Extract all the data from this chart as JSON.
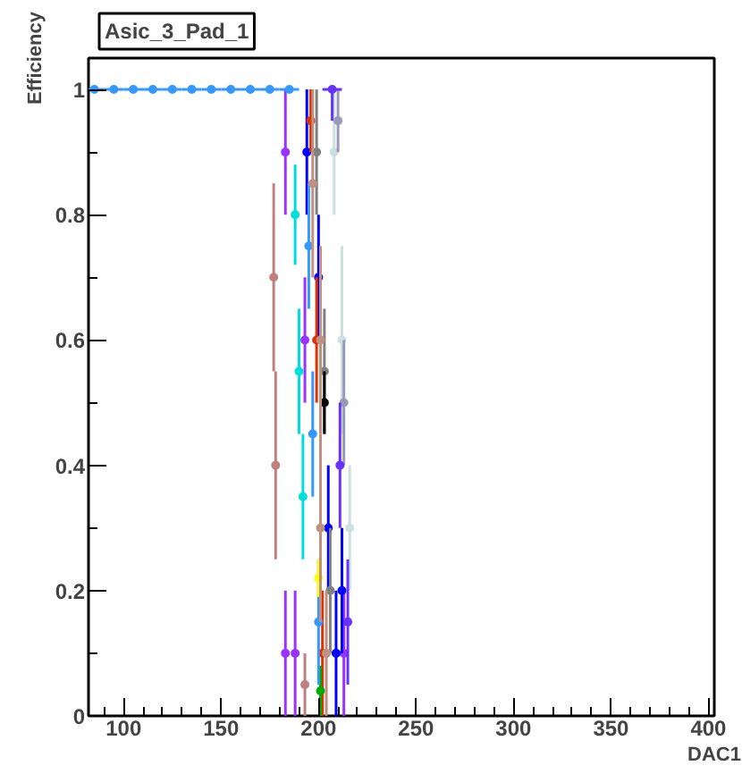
{
  "chart_data": {
    "type": "scatter",
    "title": "Asic_3_Pad_1",
    "xlabel": "DAC1",
    "ylabel": "Efficiency",
    "marker": "circle",
    "grid": false,
    "xlim": [
      82,
      403
    ],
    "ylim": [
      0,
      1.05
    ],
    "xticks": [
      {
        "value": 90,
        "label": null
      },
      100,
      {
        "value": 110,
        "label": null
      },
      {
        "value": 120,
        "label": null
      },
      {
        "value": 130,
        "label": null
      },
      {
        "value": 140,
        "label": null
      },
      150,
      {
        "value": 160,
        "label": null
      },
      {
        "value": 170,
        "label": null
      },
      {
        "value": 180,
        "label": null
      },
      {
        "value": 190,
        "label": null
      },
      200,
      {
        "value": 210,
        "label": null
      },
      {
        "value": 220,
        "label": null
      },
      {
        "value": 230,
        "label": null
      },
      {
        "value": 240,
        "label": null
      },
      250,
      {
        "value": 260,
        "label": null
      },
      {
        "value": 270,
        "label": null
      },
      {
        "value": 280,
        "label": null
      },
      {
        "value": 290,
        "label": null
      },
      300,
      {
        "value": 310,
        "label": null
      },
      {
        "value": 320,
        "label": null
      },
      {
        "value": 330,
        "label": null
      },
      {
        "value": 340,
        "label": null
      },
      350,
      {
        "value": 360,
        "label": null
      },
      {
        "value": 370,
        "label": null
      },
      {
        "value": 380,
        "label": null
      },
      {
        "value": 390,
        "label": null
      },
      400
    ],
    "yticks": [
      0,
      {
        "value": 0.1,
        "label": null
      },
      0.2,
      {
        "value": 0.3,
        "label": null
      },
      0.4,
      {
        "value": 0.5,
        "label": null
      },
      0.6,
      {
        "value": 0.7,
        "label": null
      },
      0.8,
      {
        "value": 0.9,
        "label": null
      },
      1
    ],
    "series": [
      {
        "color": "#9933ff",
        "x": [
          183,
          183,
          188,
          193,
          213
        ],
        "values": [
          0.9,
          0.1,
          0.1,
          0.6,
          0.1
        ],
        "errors": [
          0.1,
          0.1,
          0.1,
          0.1,
          0.1
        ],
        "xerrors": [
          1.5,
          1.5,
          1.5,
          1.5,
          1.5
        ]
      },
      {
        "color": "#c08080",
        "x": [
          177,
          178,
          193
        ],
        "values": [
          0.7,
          0.4,
          0.05
        ],
        "errors": [
          0.15,
          0.15,
          0.05
        ],
        "xerrors": [
          1.5,
          1.5,
          1.5
        ]
      },
      {
        "color": "#00dddd",
        "x": [
          188,
          190,
          192
        ],
        "values": [
          0.8,
          0.55,
          0.35
        ],
        "errors": [
          0.08,
          0.1,
          0.1
        ],
        "xerrors": [
          1.5,
          1.5,
          1.5
        ]
      },
      {
        "color": "#0000ff",
        "x": [
          194,
          200,
          205,
          209,
          212
        ],
        "values": [
          0.9,
          0.7,
          0.3,
          0.1,
          0.2
        ],
        "errors": [
          0.1,
          0.1,
          0.1,
          0.1,
          0.1
        ],
        "xerrors": [
          1.5,
          1.5,
          1.5,
          1.5,
          1.5
        ]
      },
      {
        "color": "#dd3300",
        "x": [
          196,
          199,
          202
        ],
        "values": [
          0.95,
          0.6,
          0.1
        ],
        "errors": [
          0.05,
          0.1,
          0.1
        ],
        "xerrors": [
          1.5,
          1.5,
          1.5
        ]
      },
      {
        "color": "#808080",
        "x": [
          199,
          203,
          206
        ],
        "values": [
          0.9,
          0.55,
          0.2
        ],
        "errors": [
          0.1,
          0.1,
          0.1
        ],
        "xerrors": [
          1.5,
          1.5,
          1.5
        ]
      },
      {
        "color": "#000000",
        "x": [
          203
        ],
        "values": [
          0.5
        ],
        "errors": [
          0.05
        ],
        "xerrors": [
          1.5
        ]
      },
      {
        "color": "#00aa00",
        "x": [
          201
        ],
        "values": [
          0.04
        ],
        "errors": [
          0.04
        ],
        "xerrors": [
          1.5
        ]
      },
      {
        "color": "#cce0dd",
        "x": [
          208,
          212,
          216
        ],
        "values": [
          0.9,
          0.6,
          0.3
        ],
        "errors": [
          0.1,
          0.15,
          0.1
        ],
        "xerrors": [
          1.5,
          1.5,
          1.5
        ]
      },
      {
        "color": "#9999bb",
        "x": [
          210,
          213
        ],
        "values": [
          0.95,
          0.5
        ],
        "errors": [
          0.05,
          0.1
        ],
        "xerrors": [
          1.5,
          1.5
        ]
      },
      {
        "color": "#3399ff",
        "x": [
          85,
          95,
          105,
          115,
          125,
          135,
          145,
          155,
          165,
          175,
          185,
          195,
          197,
          200
        ],
        "values": [
          1,
          1,
          1,
          1,
          1,
          1,
          1,
          1,
          1,
          1,
          1,
          0.75,
          0.45,
          0.15
        ],
        "errors": [
          0,
          0,
          0,
          0,
          0,
          0,
          0,
          0,
          0,
          0,
          0,
          0.1,
          0.1,
          0.1
        ],
        "xerrors": [
          5,
          5,
          5,
          5,
          5,
          5,
          5,
          5,
          5,
          5,
          5,
          1.5,
          1.5,
          1.5
        ]
      },
      {
        "color": "#6633ff",
        "x": [
          207,
          211,
          215
        ],
        "values": [
          1,
          0.4,
          0.15
        ],
        "errors": [
          [
            0.95,
            1
          ],
          0.1,
          0.1
        ],
        "xerrors": [
          5,
          1.5,
          1.5
        ]
      },
      {
        "color": "#ffff00",
        "x": [
          200
        ],
        "values": [
          0.22
        ],
        "errors": [
          0.03
        ],
        "xerrors": [
          1.5
        ]
      },
      {
        "color": "#c09080",
        "x": [
          197,
          201,
          201,
          204
        ],
        "values": [
          0.85,
          0.6,
          0.3,
          0.1
        ],
        "errors": [
          0.15,
          0.15,
          0.15,
          0.1
        ],
        "xerrors": [
          1.5,
          1.5,
          1.5,
          1.5
        ]
      }
    ]
  }
}
